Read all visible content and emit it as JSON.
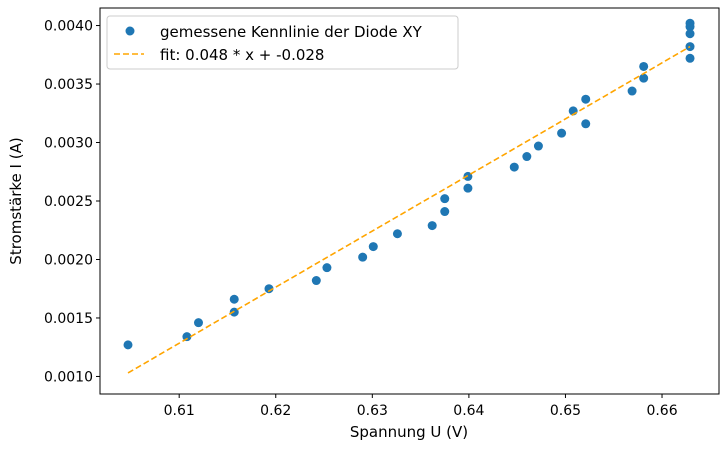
{
  "chart_data": {
    "type": "scatter",
    "title": "",
    "xlabel": "Spannung U (V)",
    "ylabel": "Stromstärke I (A)",
    "xlim": [
      0.6018,
      0.6659
    ],
    "ylim": [
      0.00085,
      0.00415
    ],
    "xticks": [
      0.61,
      0.62,
      0.63,
      0.64,
      0.65,
      0.66
    ],
    "xtick_labels": [
      "0.61",
      "0.62",
      "0.63",
      "0.64",
      "0.65",
      "0.66"
    ],
    "yticks": [
      0.001,
      0.0015,
      0.002,
      0.0025,
      0.003,
      0.0035,
      0.004
    ],
    "ytick_labels": [
      "0.0010",
      "0.0015",
      "0.0020",
      "0.0025",
      "0.0030",
      "0.0035",
      "0.0040"
    ],
    "grid": false,
    "legend_position": "top-left",
    "series": [
      {
        "name": "gemessene Kennlinie der Diode XY",
        "kind": "scatter",
        "color": "#1f77b4",
        "points": [
          [
            0.6047,
            0.00127
          ],
          [
            0.6108,
            0.00134
          ],
          [
            0.612,
            0.00146
          ],
          [
            0.6157,
            0.00166
          ],
          [
            0.6157,
            0.00155
          ],
          [
            0.6193,
            0.00175
          ],
          [
            0.6242,
            0.00182
          ],
          [
            0.6253,
            0.00193
          ],
          [
            0.629,
            0.00202
          ],
          [
            0.6301,
            0.00211
          ],
          [
            0.6326,
            0.00222
          ],
          [
            0.6362,
            0.00229
          ],
          [
            0.6375,
            0.00252
          ],
          [
            0.6375,
            0.00241
          ],
          [
            0.6399,
            0.00271
          ],
          [
            0.6399,
            0.00261
          ],
          [
            0.6447,
            0.00279
          ],
          [
            0.646,
            0.00288
          ],
          [
            0.6472,
            0.00297
          ],
          [
            0.6496,
            0.00308
          ],
          [
            0.6508,
            0.00327
          ],
          [
            0.6521,
            0.00337
          ],
          [
            0.6521,
            0.00316
          ],
          [
            0.6569,
            0.00344
          ],
          [
            0.6581,
            0.00365
          ],
          [
            0.6581,
            0.00355
          ],
          [
            0.6629,
            0.00402
          ],
          [
            0.6629,
            0.00399
          ],
          [
            0.6629,
            0.00393
          ],
          [
            0.6629,
            0.00382
          ],
          [
            0.6629,
            0.00372
          ]
        ]
      },
      {
        "name": "fit: 0.048 * x + -0.028",
        "kind": "line",
        "style": "dashed",
        "color": "#ffa500",
        "points": [
          [
            0.6047,
            0.00103
          ],
          [
            0.6629,
            0.00382
          ]
        ]
      }
    ]
  }
}
